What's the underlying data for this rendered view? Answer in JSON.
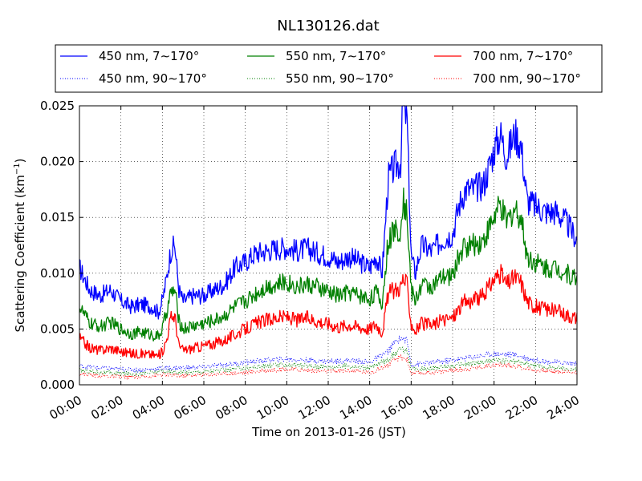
{
  "chart_data": {
    "type": "line",
    "title": "NL130126.dat",
    "xlabel": "Time on 2013-01-26 (JST)",
    "ylabel_main": "Scattering Coefficient (km",
    "ylabel_sup": "−1",
    "ylabel_end": ")",
    "x_unit": "hours",
    "xlim": [
      0,
      24
    ],
    "ylim": [
      0,
      0.025
    ],
    "x_tick_values": [
      0,
      2,
      4,
      6,
      8,
      10,
      12,
      14,
      16,
      18,
      20,
      22,
      24
    ],
    "x_tick_labels": [
      "00:00",
      "02:00",
      "04:00",
      "06:00",
      "08:00",
      "10:00",
      "12:00",
      "14:00",
      "16:00",
      "18:00",
      "20:00",
      "22:00",
      "24:00"
    ],
    "y_tick_values": [
      0,
      0.005,
      0.01,
      0.015,
      0.02,
      0.025
    ],
    "y_tick_labels": [
      "0.000",
      "0.005",
      "0.010",
      "0.015",
      "0.020",
      "0.025"
    ],
    "grid": true,
    "legend_position": "top, above plot",
    "series": [
      {
        "name": "450 nm, 7∼170°",
        "color": "#0000ff",
        "style": "solid",
        "x": [
          0,
          0.5,
          1,
          1.5,
          2,
          2.5,
          3,
          3.5,
          3.8,
          4,
          4.2,
          4.4,
          4.6,
          4.8,
          5,
          5.5,
          6,
          6.5,
          7,
          7.5,
          8,
          8.5,
          9,
          9.5,
          10,
          10.5,
          11,
          11.5,
          12,
          12.5,
          13,
          13.5,
          14,
          14.3,
          14.6,
          14.9,
          15.2,
          15.5,
          15.6,
          15.8,
          16,
          16.2,
          16.5,
          17,
          17.5,
          18,
          18.3,
          18.6,
          19,
          19.5,
          20,
          20.3,
          20.6,
          21,
          21.3,
          21.6,
          22,
          22.5,
          23,
          23.5,
          24
        ],
        "y": [
          0.0105,
          0.0085,
          0.008,
          0.0085,
          0.0075,
          0.007,
          0.0072,
          0.007,
          0.0065,
          0.0075,
          0.0095,
          0.012,
          0.0125,
          0.0085,
          0.0075,
          0.008,
          0.008,
          0.0085,
          0.009,
          0.0105,
          0.011,
          0.0118,
          0.012,
          0.0122,
          0.0123,
          0.012,
          0.0122,
          0.0118,
          0.0115,
          0.011,
          0.0115,
          0.011,
          0.0105,
          0.0115,
          0.01,
          0.0185,
          0.0195,
          0.02,
          0.025,
          0.024,
          0.0115,
          0.01,
          0.0125,
          0.012,
          0.013,
          0.0135,
          0.016,
          0.0175,
          0.0175,
          0.018,
          0.021,
          0.0225,
          0.0205,
          0.0225,
          0.0215,
          0.0165,
          0.016,
          0.0155,
          0.0155,
          0.0145,
          0.013
        ]
      },
      {
        "name": "550 nm, 7∼170°",
        "color": "#008000",
        "style": "solid",
        "x": [
          0,
          0.5,
          1,
          1.5,
          2,
          2.5,
          3,
          3.5,
          3.8,
          4,
          4.2,
          4.4,
          4.6,
          4.8,
          5,
          5.5,
          6,
          6.5,
          7,
          7.5,
          8,
          8.5,
          9,
          9.5,
          10,
          10.5,
          11,
          11.5,
          12,
          12.5,
          13,
          13.5,
          14,
          14.3,
          14.6,
          14.9,
          15.2,
          15.5,
          15.6,
          15.8,
          16,
          16.2,
          16.5,
          17,
          17.5,
          18,
          18.3,
          18.6,
          19,
          19.5,
          20,
          20.3,
          20.6,
          21,
          21.3,
          21.6,
          22,
          22.5,
          23,
          23.5,
          24
        ],
        "y": [
          0.007,
          0.0055,
          0.0052,
          0.0056,
          0.005,
          0.0046,
          0.0047,
          0.0045,
          0.0043,
          0.005,
          0.0065,
          0.0082,
          0.0085,
          0.0057,
          0.005,
          0.0053,
          0.0055,
          0.0058,
          0.0062,
          0.007,
          0.0075,
          0.0082,
          0.0088,
          0.009,
          0.0092,
          0.0088,
          0.009,
          0.0087,
          0.0083,
          0.008,
          0.0083,
          0.008,
          0.0077,
          0.0083,
          0.0072,
          0.013,
          0.0138,
          0.014,
          0.0165,
          0.0155,
          0.0085,
          0.0075,
          0.009,
          0.0088,
          0.0095,
          0.0098,
          0.0115,
          0.0125,
          0.0125,
          0.013,
          0.015,
          0.016,
          0.0145,
          0.0158,
          0.015,
          0.0115,
          0.011,
          0.0105,
          0.0105,
          0.01,
          0.0095
        ]
      },
      {
        "name": "700 nm, 7∼170°",
        "color": "#ff0000",
        "style": "solid",
        "x": [
          0,
          0.5,
          1,
          1.5,
          2,
          2.5,
          3,
          3.5,
          3.8,
          4,
          4.2,
          4.4,
          4.6,
          4.8,
          5,
          5.5,
          6,
          6.5,
          7,
          7.5,
          8,
          8.5,
          9,
          9.5,
          10,
          10.5,
          11,
          11.5,
          12,
          12.5,
          13,
          13.5,
          14,
          14.3,
          14.6,
          14.9,
          15.2,
          15.5,
          15.6,
          15.8,
          16,
          16.2,
          16.5,
          17,
          17.5,
          18,
          18.3,
          18.6,
          19,
          19.5,
          20,
          20.3,
          20.6,
          21,
          21.3,
          21.6,
          22,
          22.5,
          23,
          23.5,
          24
        ],
        "y": [
          0.0042,
          0.0033,
          0.0031,
          0.0033,
          0.003,
          0.0028,
          0.0028,
          0.0027,
          0.0026,
          0.003,
          0.004,
          0.006,
          0.0062,
          0.0035,
          0.0031,
          0.0033,
          0.0035,
          0.0037,
          0.004,
          0.0045,
          0.005,
          0.0055,
          0.0058,
          0.006,
          0.0061,
          0.0058,
          0.006,
          0.0057,
          0.0055,
          0.0052,
          0.0054,
          0.0052,
          0.005,
          0.0055,
          0.0047,
          0.0082,
          0.0085,
          0.0088,
          0.0095,
          0.009,
          0.0055,
          0.0048,
          0.0055,
          0.0053,
          0.0058,
          0.006,
          0.0068,
          0.0075,
          0.0075,
          0.008,
          0.0095,
          0.01,
          0.009,
          0.0097,
          0.0092,
          0.0075,
          0.007,
          0.0068,
          0.0066,
          0.0063,
          0.006
        ]
      },
      {
        "name": "450 nm, 90∼170°",
        "color": "#0000ff",
        "style": "dotted",
        "x": [
          0,
          1,
          2,
          3,
          4,
          5,
          6,
          7,
          8,
          9,
          10,
          11,
          12,
          13,
          14,
          14.9,
          15.2,
          15.5,
          15.8,
          16,
          17,
          18,
          19,
          20,
          21,
          22,
          23,
          24
        ],
        "y": [
          0.0017,
          0.0015,
          0.0014,
          0.0013,
          0.0015,
          0.0015,
          0.0016,
          0.0018,
          0.002,
          0.0022,
          0.0023,
          0.0022,
          0.0021,
          0.0022,
          0.002,
          0.003,
          0.0038,
          0.0042,
          0.004,
          0.0018,
          0.002,
          0.0022,
          0.0025,
          0.0028,
          0.0027,
          0.0022,
          0.002,
          0.0019
        ]
      },
      {
        "name": "550 nm, 90∼170°",
        "color": "#008000",
        "style": "dotted",
        "x": [
          0,
          1,
          2,
          3,
          4,
          5,
          6,
          7,
          8,
          9,
          10,
          11,
          12,
          13,
          14,
          14.9,
          15.2,
          15.5,
          15.8,
          16,
          17,
          18,
          19,
          20,
          21,
          22,
          23,
          24
        ],
        "y": [
          0.0013,
          0.0011,
          0.001,
          0.001,
          0.0012,
          0.0011,
          0.0012,
          0.0013,
          0.0015,
          0.0017,
          0.0018,
          0.0017,
          0.0016,
          0.0017,
          0.0015,
          0.0023,
          0.0028,
          0.0032,
          0.003,
          0.0014,
          0.0015,
          0.0017,
          0.0019,
          0.0022,
          0.0021,
          0.0017,
          0.0015,
          0.0014
        ]
      },
      {
        "name": "700 nm, 90∼170°",
        "color": "#ff0000",
        "style": "dotted",
        "x": [
          0,
          1,
          2,
          3,
          4,
          5,
          6,
          7,
          8,
          9,
          10,
          11,
          12,
          13,
          14,
          14.9,
          15.2,
          15.5,
          15.8,
          16,
          17,
          18,
          19,
          20,
          21,
          22,
          23,
          24
        ],
        "y": [
          0.001,
          0.0008,
          0.0007,
          0.0007,
          0.0009,
          0.0008,
          0.0009,
          0.001,
          0.0011,
          0.0013,
          0.0014,
          0.0013,
          0.0012,
          0.0013,
          0.0011,
          0.0018,
          0.0022,
          0.0025,
          0.0023,
          0.001,
          0.0011,
          0.0013,
          0.0015,
          0.0018,
          0.0017,
          0.0013,
          0.0012,
          0.0011
        ]
      }
    ]
  }
}
